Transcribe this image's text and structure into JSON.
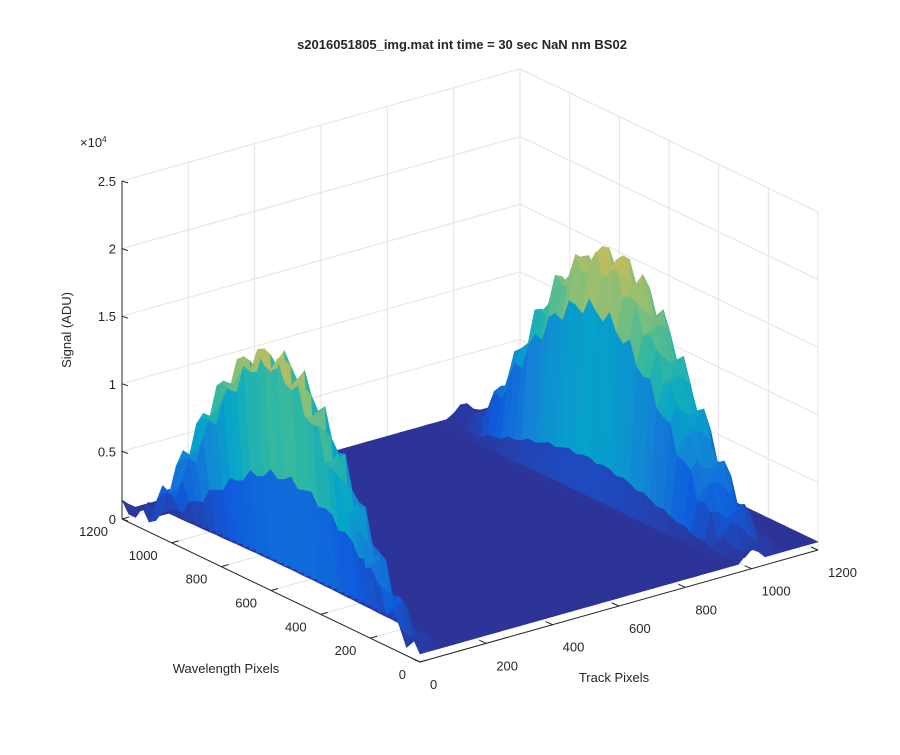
{
  "chart_data": {
    "type": "surface",
    "title": "s2016051805_img.mat int time = 30 sec  NaN nm BS02",
    "xlabel": "Track Pixels",
    "ylabel": "Wavelength Pixels",
    "zlabel": "Signal (ADU)",
    "x_ticks": [
      "0",
      "200",
      "400",
      "600",
      "800",
      "1000",
      "1200"
    ],
    "y_ticks": [
      "0",
      "200",
      "400",
      "600",
      "800",
      "1000",
      "1200"
    ],
    "z_ticks": [
      "0",
      "0.5",
      "1",
      "1.5",
      "2",
      "2.5"
    ],
    "z_exponent_base": "×10",
    "z_exponent": "4",
    "xlim": [
      0,
      1200
    ],
    "ylim": [
      0,
      1200
    ],
    "zlim": [
      0,
      25000
    ],
    "grid": true,
    "colormap": "parula",
    "colors": [
      "#352a87",
      "#0f5cdd",
      "#1481d6",
      "#06a4ca",
      "#2eb7a4",
      "#87bf77",
      "#d1bb59",
      "#fec832",
      "#f9fb0e"
    ],
    "baseline_level": 600,
    "peaks": [
      {
        "name": "left",
        "track_center": 15,
        "track_width": 30,
        "max_signal": 21500,
        "falloff_end_wavelength": 0
      },
      {
        "name": "right",
        "track_center": 1030,
        "track_width": 40,
        "max_signal": 22000,
        "falloff_end_wavelength": 0
      }
    ]
  }
}
